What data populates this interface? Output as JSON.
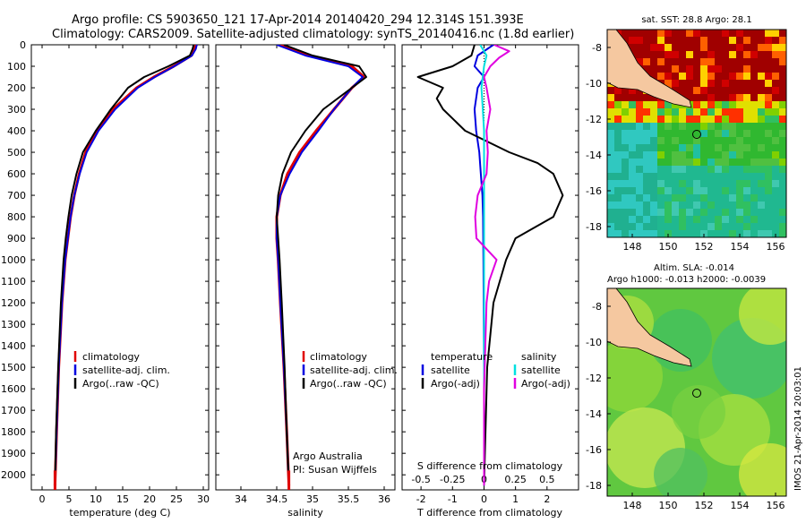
{
  "title": {
    "line1": "Argo profile: CS 5903650_121 17-Apr-2014 20140420_294 12.314S 151.393E",
    "line2": "Climatology: CARS2009. Satellite-adjusted climatology: synTS_20140416.nc (1.8d earlier)"
  },
  "colors": {
    "climatology": "#e00000",
    "satellite": "#0000e0",
    "argo": "#000000",
    "salinity_sat": "#00e0e0",
    "salinity_argo": "#e000e0",
    "land": "#f5c8a0"
  },
  "chart_data": [
    {
      "type": "line",
      "name": "temperature",
      "xlabel": "temperature (deg C)",
      "ylabel": "",
      "xlim": [
        -2,
        31
      ],
      "ylim": [
        2070,
        0
      ],
      "xticks": [
        "0",
        "5",
        "10",
        "15",
        "20",
        "25",
        "30"
      ],
      "yticks": [
        "0",
        "100",
        "200",
        "300",
        "400",
        "500",
        "600",
        "700",
        "800",
        "900",
        "1000",
        "1100",
        "1200",
        "1300",
        "1400",
        "1500",
        "1600",
        "1700",
        "1800",
        "1900",
        "2000"
      ],
      "legend": [
        "climatology",
        "satellite-adj. clim.",
        "Argo(..raw -QC)"
      ],
      "series": [
        {
          "name": "climatology",
          "depth": [
            0,
            20,
            50,
            100,
            150,
            200,
            300,
            400,
            500,
            600,
            700,
            800,
            900,
            1000,
            1200,
            1500,
            1800,
            2050
          ],
          "values": [
            28.6,
            28.4,
            27.8,
            24.5,
            20.8,
            17.6,
            13.2,
            10.2,
            8.1,
            6.9,
            6.0,
            5.3,
            4.8,
            4.3,
            3.7,
            3.1,
            2.7,
            2.4
          ]
        },
        {
          "name": "satellite",
          "depth": [
            0,
            20,
            50,
            100,
            150,
            200,
            300,
            400,
            500,
            600,
            700,
            800,
            900,
            1000,
            1200,
            1500,
            1800,
            2050
          ],
          "values": [
            28.8,
            28.6,
            27.9,
            24.6,
            21.0,
            17.8,
            13.6,
            10.5,
            8.3,
            7.0,
            6.0,
            5.3,
            4.8,
            4.3,
            3.7,
            3.1,
            2.7,
            2.4
          ]
        },
        {
          "name": "Argo",
          "depth": [
            0,
            20,
            50,
            100,
            150,
            200,
            300,
            400,
            500,
            600,
            700,
            800,
            900,
            1000,
            1200,
            1500,
            1800,
            2050
          ],
          "values": [
            28.2,
            28.0,
            27.5,
            23.5,
            19.0,
            16.0,
            12.8,
            10.0,
            7.6,
            6.4,
            5.5,
            4.9,
            4.4,
            4.0,
            3.5,
            3.0,
            2.6,
            2.4
          ]
        }
      ]
    },
    {
      "type": "line",
      "name": "salinity",
      "xlabel": "salinity",
      "ylabel": "",
      "xlim": [
        33.65,
        36.15
      ],
      "ylim": [
        2070,
        0
      ],
      "xticks": [
        "34",
        "34.5",
        "35",
        "35.5",
        "36"
      ],
      "legend": [
        "climatology",
        "satellite-adj. clim.",
        "Argo(..raw -QC)"
      ],
      "annotation": [
        "Argo Australia",
        "PI: Susan Wijffels"
      ],
      "series": [
        {
          "name": "climatology",
          "depth": [
            0,
            50,
            100,
            150,
            200,
            300,
            400,
            500,
            600,
            700,
            800,
            900,
            1000,
            1200,
            1500,
            1800,
            2050
          ],
          "values": [
            34.55,
            34.95,
            35.55,
            35.72,
            35.55,
            35.3,
            35.05,
            34.82,
            34.65,
            34.55,
            34.5,
            34.5,
            34.52,
            34.55,
            34.6,
            34.64,
            34.67
          ]
        },
        {
          "name": "satellite",
          "depth": [
            0,
            50,
            100,
            150,
            200,
            300,
            400,
            500,
            600,
            700,
            800,
            900,
            1000,
            1200,
            1500,
            1800,
            2050
          ],
          "values": [
            34.5,
            34.9,
            35.5,
            35.7,
            35.55,
            35.3,
            35.08,
            34.85,
            34.68,
            34.55,
            34.5,
            34.5,
            34.52,
            34.55,
            34.6,
            34.64,
            34.67
          ]
        },
        {
          "name": "Argo",
          "depth": [
            0,
            50,
            100,
            150,
            200,
            300,
            400,
            500,
            600,
            700,
            800,
            900,
            1000,
            1200,
            1500,
            1800,
            2050
          ],
          "values": [
            34.6,
            35.0,
            35.65,
            35.75,
            35.55,
            35.15,
            34.9,
            34.7,
            34.58,
            34.52,
            34.5,
            34.52,
            34.54,
            34.57,
            34.61,
            34.64,
            34.67
          ]
        }
      ]
    },
    {
      "type": "line",
      "name": "difference",
      "xlabel": "T difference from climatology",
      "top_axis_label": "S difference from climatology",
      "xlim": [
        -2.6,
        3.0
      ],
      "ylim": [
        2070,
        0
      ],
      "xticks": [
        "-2",
        "-1",
        "0",
        "1",
        "2"
      ],
      "top_ticks": [
        "-0.5",
        "-0.25",
        "0",
        "0.25",
        "0.5"
      ],
      "legend_temperature": [
        "temperature",
        "satellite",
        "Argo(-adj)"
      ],
      "legend_salinity": [
        "salinity",
        "satellite",
        "Argo(-adj)"
      ],
      "series": [
        {
          "name": "T satellite",
          "depth": [
            0,
            50,
            100,
            150,
            200,
            300,
            400,
            500,
            600,
            700,
            800,
            1000,
            1500,
            2050
          ],
          "values": [
            0.3,
            -0.2,
            -0.3,
            0.0,
            -0.2,
            -0.3,
            -0.25,
            -0.15,
            -0.1,
            -0.05,
            -0.03,
            -0.02,
            0.0,
            0.0
          ]
        },
        {
          "name": "T Argo",
          "depth": [
            0,
            50,
            100,
            150,
            200,
            250,
            300,
            400,
            500,
            550,
            600,
            700,
            800,
            900,
            1000,
            1200,
            1500,
            2050
          ],
          "values": [
            -0.3,
            -0.4,
            -1.0,
            -2.1,
            -1.3,
            -1.5,
            -1.3,
            -0.6,
            0.8,
            1.7,
            2.2,
            2.5,
            2.2,
            1.0,
            0.7,
            0.3,
            0.1,
            0.0
          ]
        },
        {
          "name": "S satellite",
          "depth": [
            0,
            50,
            100,
            200,
            300,
            400,
            500,
            700,
            1000,
            1500,
            2050
          ],
          "values": [
            -0.03,
            0.02,
            0.0,
            -0.02,
            -0.01,
            0.0,
            0.0,
            0.0,
            0.0,
            0.0,
            0.0
          ]
        },
        {
          "name": "S Argo",
          "depth": [
            0,
            30,
            60,
            100,
            150,
            200,
            300,
            400,
            500,
            600,
            700,
            800,
            900,
            1000,
            1100,
            1200,
            1400,
            1600,
            2050
          ],
          "values": [
            0.08,
            0.2,
            0.12,
            0.05,
            0.0,
            0.02,
            0.05,
            0.02,
            0.03,
            0.02,
            -0.05,
            -0.07,
            -0.06,
            0.1,
            0.04,
            0.02,
            0.01,
            0.0,
            0.0
          ]
        }
      ]
    }
  ],
  "maps": {
    "sst": {
      "title": "sat. SST: 28.8  Argo: 28.1",
      "xticks": [
        "148",
        "150",
        "152",
        "154",
        "156"
      ],
      "yticks": [
        "-8",
        "-10",
        "-12",
        "-14",
        "-16",
        "-18"
      ]
    },
    "sla": {
      "title1": "Altim. SLA: -0.014",
      "title2": "Argo h1000: -0.013 h2000: -0.0039",
      "xticks": [
        "148",
        "150",
        "152",
        "154",
        "156"
      ],
      "yticks": [
        "-8",
        "-10",
        "-12",
        "-14",
        "-16",
        "-18"
      ]
    }
  },
  "imos_label": "IMOS 21-Apr-2014 20:03:01"
}
